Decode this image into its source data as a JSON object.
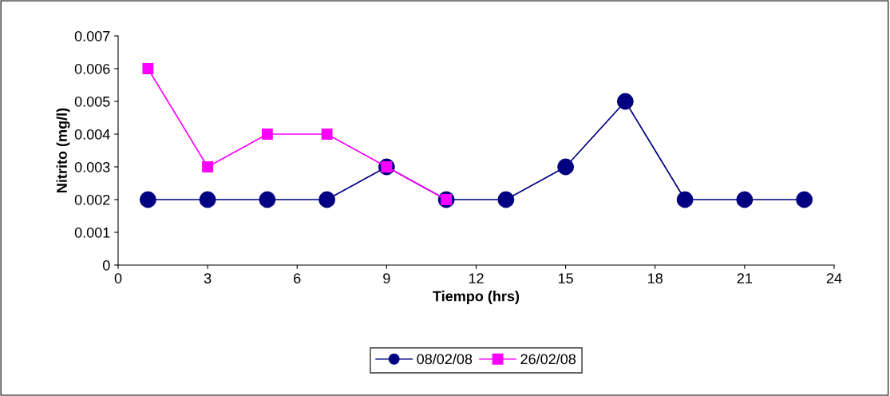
{
  "chart_data": {
    "type": "line",
    "xlabel": "Tiempo (hrs)",
    "ylabel": "Nitrito (mg/l)",
    "xlim": [
      0,
      24
    ],
    "xticks": [
      0,
      3,
      6,
      9,
      12,
      15,
      18,
      21,
      24
    ],
    "ylim": [
      0,
      0.007
    ],
    "yticks": [
      0,
      0.001,
      0.002,
      0.003,
      0.004,
      0.005,
      0.006,
      0.007
    ],
    "grid": false,
    "legend": "bottom",
    "line_style": "solid",
    "series": [
      {
        "name": "08/02/08",
        "color": "#000080",
        "marker": "circle",
        "x": [
          1,
          3,
          5,
          7,
          9,
          11,
          13,
          15,
          17,
          19,
          21,
          23
        ],
        "values": [
          0.002,
          0.002,
          0.002,
          0.002,
          0.003,
          0.002,
          0.002,
          0.003,
          0.005,
          0.002,
          0.002,
          0.002
        ]
      },
      {
        "name": "26/02/08",
        "color": "#ff00ff",
        "marker": "square",
        "x": [
          1,
          3,
          5,
          7,
          9,
          11
        ],
        "values": [
          0.006,
          0.003,
          0.004,
          0.004,
          0.003,
          0.002
        ]
      }
    ]
  }
}
